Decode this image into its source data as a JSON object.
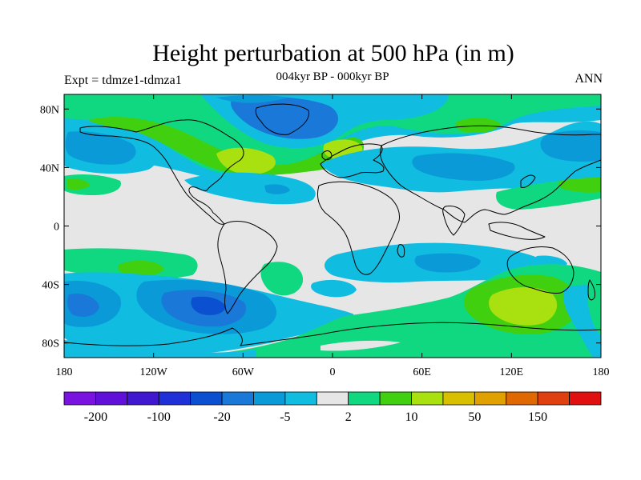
{
  "header": {
    "title": "Height perturbation at 500 hPa (in m)",
    "subtitle": "004kyr BP - 000kyr BP",
    "left_string": "Expt = tdmze1-tdmza1",
    "right_string": "ANN"
  },
  "axes": {
    "lat_labels": [
      "80N",
      "40N",
      "0",
      "40S",
      "80S"
    ],
    "lat_values": [
      80,
      40,
      0,
      -40,
      -80
    ],
    "lon_labels": [
      "180",
      "120W",
      "60W",
      "0",
      "60E",
      "120E",
      "180"
    ],
    "lon_values": [
      -180,
      -120,
      -60,
      0,
      60,
      120,
      180
    ],
    "lat_range": [
      -90,
      90
    ],
    "lon_range": [
      -180,
      180
    ]
  },
  "colorbar": {
    "labels": [
      "-200",
      "-100",
      "-20",
      "-5",
      "2",
      "10",
      "50",
      "150"
    ],
    "label_after_box": [
      1,
      3,
      5,
      7,
      9,
      11,
      13,
      15
    ],
    "colors": [
      "#7a12e0",
      "#6010d8",
      "#4018d0",
      "#2030d8",
      "#0a50d0",
      "#1a78d8",
      "#0a9ad8",
      "#10bce0",
      "#e6e6e6",
      "#10d880",
      "#40d010",
      "#a8e010",
      "#d8c000",
      "#e0a000",
      "#e06800",
      "#e04010",
      "#e01010"
    ]
  },
  "colors": {
    "land_background": "#e6e6e6",
    "coastline": "#000000"
  }
}
